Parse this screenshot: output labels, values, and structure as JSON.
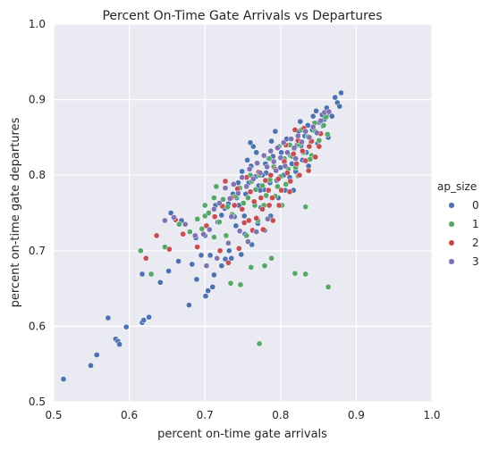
{
  "chart_data": {
    "type": "scatter",
    "title": "Percent On-Time Gate Arrivals vs Departures",
    "xlabel": "percent on-time gate arrivals",
    "ylabel": "percent on-time gate departures",
    "xlim": [
      0.5,
      1.0
    ],
    "ylim": [
      0.5,
      1.0
    ],
    "xticks": [
      "0.5",
      "0.6",
      "0.7",
      "0.8",
      "0.9",
      "1.0"
    ],
    "yticks": [
      "0.5",
      "0.6",
      "0.7",
      "0.8",
      "0.9",
      "1.0"
    ],
    "grid": true,
    "legend": {
      "title": "ap_size",
      "placement": "right"
    },
    "series": [
      {
        "name": "0",
        "color": "#4c72b0",
        "points": [
          [
            0.513,
            0.53
          ],
          [
            0.549,
            0.548
          ],
          [
            0.557,
            0.562
          ],
          [
            0.572,
            0.611
          ],
          [
            0.582,
            0.583
          ],
          [
            0.585,
            0.58
          ],
          [
            0.587,
            0.576
          ],
          [
            0.596,
            0.599
          ],
          [
            0.617,
            0.605
          ],
          [
            0.619,
            0.608
          ],
          [
            0.626,
            0.612
          ],
          [
            0.617,
            0.669
          ],
          [
            0.641,
            0.658
          ],
          [
            0.652,
            0.673
          ],
          [
            0.665,
            0.686
          ],
          [
            0.679,
            0.628
          ],
          [
            0.683,
            0.682
          ],
          [
            0.689,
            0.662
          ],
          [
            0.695,
            0.694
          ],
          [
            0.701,
            0.64
          ],
          [
            0.704,
            0.647
          ],
          [
            0.71,
            0.652
          ],
          [
            0.712,
            0.668
          ],
          [
            0.722,
            0.68
          ],
          [
            0.727,
            0.689
          ],
          [
            0.655,
            0.75
          ],
          [
            0.669,
            0.74
          ],
          [
            0.688,
            0.717
          ],
          [
            0.707,
            0.694
          ],
          [
            0.735,
            0.69
          ],
          [
            0.741,
            0.733
          ],
          [
            0.748,
            0.695
          ],
          [
            0.752,
            0.746
          ],
          [
            0.758,
            0.79
          ],
          [
            0.761,
            0.812
          ],
          [
            0.764,
            0.838
          ],
          [
            0.768,
            0.83
          ],
          [
            0.771,
            0.786
          ],
          [
            0.774,
            0.757
          ],
          [
            0.778,
            0.781
          ],
          [
            0.781,
            0.803
          ],
          [
            0.784,
            0.822
          ],
          [
            0.788,
            0.845
          ],
          [
            0.791,
            0.812
          ],
          [
            0.795,
            0.793
          ],
          [
            0.797,
            0.77
          ],
          [
            0.801,
            0.83
          ],
          [
            0.805,
            0.818
          ],
          [
            0.808,
            0.848
          ],
          [
            0.812,
            0.797
          ],
          [
            0.815,
            0.815
          ],
          [
            0.818,
            0.835
          ],
          [
            0.822,
            0.84
          ],
          [
            0.826,
            0.871
          ],
          [
            0.829,
            0.82
          ],
          [
            0.832,
            0.852
          ],
          [
            0.836,
            0.866
          ],
          [
            0.84,
            0.844
          ],
          [
            0.843,
            0.878
          ],
          [
            0.847,
            0.885
          ],
          [
            0.851,
            0.87
          ],
          [
            0.855,
            0.88
          ],
          [
            0.858,
            0.874
          ],
          [
            0.861,
            0.889
          ],
          [
            0.865,
            0.88
          ],
          [
            0.868,
            0.878
          ],
          [
            0.872,
            0.903
          ],
          [
            0.875,
            0.896
          ],
          [
            0.878,
            0.891
          ],
          [
            0.88,
            0.909
          ],
          [
            0.744,
            0.79
          ],
          [
            0.737,
            0.775
          ],
          [
            0.731,
            0.762
          ],
          [
            0.726,
            0.756
          ],
          [
            0.722,
            0.747
          ],
          [
            0.717,
            0.738
          ],
          [
            0.714,
            0.76
          ],
          [
            0.742,
            0.77
          ],
          [
            0.749,
            0.805
          ],
          [
            0.756,
            0.82
          ],
          [
            0.76,
            0.843
          ],
          [
            0.767,
            0.798
          ],
          [
            0.773,
            0.78
          ],
          [
            0.78,
            0.815
          ],
          [
            0.786,
            0.79
          ],
          [
            0.793,
            0.858
          ],
          [
            0.8,
            0.81
          ],
          [
            0.806,
            0.78
          ],
          [
            0.813,
            0.826
          ],
          [
            0.82,
            0.805
          ],
          [
            0.827,
            0.839
          ],
          [
            0.834,
            0.83
          ],
          [
            0.842,
            0.86
          ],
          [
            0.849,
            0.842
          ],
          [
            0.856,
            0.865
          ],
          [
            0.863,
            0.85
          ],
          [
            0.7,
            0.72
          ],
          [
            0.732,
            0.7
          ],
          [
            0.753,
            0.722
          ],
          [
            0.762,
            0.708
          ],
          [
            0.77,
            0.736
          ],
          [
            0.779,
            0.727
          ],
          [
            0.787,
            0.746
          ],
          [
            0.745,
            0.76
          ],
          [
            0.754,
            0.775
          ],
          [
            0.739,
            0.745
          ],
          [
            0.776,
            0.8
          ],
          [
            0.79,
            0.825
          ],
          [
            0.804,
            0.8
          ],
          [
            0.817,
            0.78
          ],
          [
            0.824,
            0.858
          ],
          [
            0.837,
            0.812
          ]
        ]
      },
      {
        "name": "1",
        "color": "#55a868",
        "points": [
          [
            0.615,
            0.7
          ],
          [
            0.629,
            0.669
          ],
          [
            0.647,
            0.705
          ],
          [
            0.666,
            0.735
          ],
          [
            0.68,
            0.725
          ],
          [
            0.69,
            0.742
          ],
          [
            0.696,
            0.729
          ],
          [
            0.7,
            0.746
          ],
          [
            0.705,
            0.75
          ],
          [
            0.712,
            0.718
          ],
          [
            0.719,
            0.738
          ],
          [
            0.724,
            0.768
          ],
          [
            0.73,
            0.758
          ],
          [
            0.736,
            0.748
          ],
          [
            0.741,
            0.772
          ],
          [
            0.746,
            0.783
          ],
          [
            0.751,
            0.763
          ],
          [
            0.757,
            0.77
          ],
          [
            0.762,
            0.792
          ],
          [
            0.767,
            0.781
          ],
          [
            0.772,
            0.8
          ],
          [
            0.776,
            0.786
          ],
          [
            0.781,
            0.773
          ],
          [
            0.786,
            0.794
          ],
          [
            0.791,
            0.811
          ],
          [
            0.796,
            0.785
          ],
          [
            0.8,
            0.798
          ],
          [
            0.805,
            0.822
          ],
          [
            0.81,
            0.808
          ],
          [
            0.815,
            0.825
          ],
          [
            0.82,
            0.81
          ],
          [
            0.825,
            0.841
          ],
          [
            0.83,
            0.83
          ],
          [
            0.836,
            0.851
          ],
          [
            0.841,
            0.826
          ],
          [
            0.846,
            0.858
          ],
          [
            0.851,
            0.846
          ],
          [
            0.857,
            0.866
          ],
          [
            0.862,
            0.854
          ],
          [
            0.734,
            0.657
          ],
          [
            0.747,
            0.655
          ],
          [
            0.761,
            0.678
          ],
          [
            0.772,
            0.577
          ],
          [
            0.779,
            0.68
          ],
          [
            0.788,
            0.69
          ],
          [
            0.819,
            0.67
          ],
          [
            0.833,
            0.669
          ],
          [
            0.863,
            0.652
          ],
          [
            0.833,
            0.758
          ],
          [
            0.755,
            0.72
          ],
          [
            0.766,
            0.76
          ],
          [
            0.778,
            0.76
          ],
          [
            0.793,
            0.772
          ],
          [
            0.807,
            0.788
          ],
          [
            0.823,
            0.799
          ],
          [
            0.839,
            0.821
          ],
          [
            0.712,
            0.77
          ],
          [
            0.728,
            0.72
          ],
          [
            0.76,
            0.8
          ],
          [
            0.785,
            0.822
          ],
          [
            0.798,
            0.838
          ],
          [
            0.812,
            0.84
          ],
          [
            0.828,
            0.86
          ],
          [
            0.845,
            0.869
          ],
          [
            0.86,
            0.877
          ],
          [
            0.7,
            0.76
          ],
          [
            0.715,
            0.785
          ],
          [
            0.77,
            0.74
          ],
          [
            0.802,
            0.76
          ]
        ]
      },
      {
        "name": "2",
        "color": "#c44e52",
        "points": [
          [
            0.622,
            0.69
          ],
          [
            0.636,
            0.72
          ],
          [
            0.653,
            0.702
          ],
          [
            0.661,
            0.741
          ],
          [
            0.671,
            0.722
          ],
          [
            0.69,
            0.705
          ],
          [
            0.702,
            0.733
          ],
          [
            0.713,
            0.745
          ],
          [
            0.723,
            0.759
          ],
          [
            0.727,
            0.792
          ],
          [
            0.735,
            0.77
          ],
          [
            0.743,
            0.782
          ],
          [
            0.749,
            0.755
          ],
          [
            0.755,
            0.797
          ],
          [
            0.76,
            0.778
          ],
          [
            0.765,
            0.765
          ],
          [
            0.771,
            0.804
          ],
          [
            0.776,
            0.755
          ],
          [
            0.78,
            0.793
          ],
          [
            0.784,
            0.78
          ],
          [
            0.789,
            0.77
          ],
          [
            0.793,
            0.808
          ],
          [
            0.797,
            0.795
          ],
          [
            0.801,
            0.78
          ],
          [
            0.805,
            0.818
          ],
          [
            0.809,
            0.803
          ],
          [
            0.813,
            0.792
          ],
          [
            0.817,
            0.828
          ],
          [
            0.821,
            0.815
          ],
          [
            0.825,
            0.8
          ],
          [
            0.829,
            0.832
          ],
          [
            0.833,
            0.819
          ],
          [
            0.837,
            0.806
          ],
          [
            0.841,
            0.845
          ],
          [
            0.846,
            0.824
          ],
          [
            0.851,
            0.838
          ],
          [
            0.72,
            0.7
          ],
          [
            0.731,
            0.684
          ],
          [
            0.745,
            0.703
          ],
          [
            0.752,
            0.737
          ],
          [
            0.763,
            0.727
          ],
          [
            0.768,
            0.743
          ],
          [
            0.777,
            0.728
          ],
          [
            0.785,
            0.76
          ],
          [
            0.79,
            0.74
          ],
          [
            0.758,
            0.74
          ],
          [
            0.774,
            0.77
          ],
          [
            0.787,
            0.8
          ],
          [
            0.798,
            0.76
          ],
          [
            0.812,
            0.778
          ],
          [
            0.823,
            0.846
          ],
          [
            0.838,
            0.838
          ],
          [
            0.853,
            0.855
          ],
          [
            0.739,
            0.76
          ],
          [
            0.807,
            0.84
          ],
          [
            0.819,
            0.86
          ],
          [
            0.831,
            0.862
          ]
        ]
      },
      {
        "name": "3",
        "color": "#8172b2",
        "points": [
          [
            0.647,
            0.74
          ],
          [
            0.659,
            0.744
          ],
          [
            0.674,
            0.735
          ],
          [
            0.687,
            0.72
          ],
          [
            0.698,
            0.722
          ],
          [
            0.706,
            0.728
          ],
          [
            0.712,
            0.755
          ],
          [
            0.719,
            0.763
          ],
          [
            0.727,
            0.783
          ],
          [
            0.733,
            0.769
          ],
          [
            0.738,
            0.788
          ],
          [
            0.744,
            0.776
          ],
          [
            0.749,
            0.797
          ],
          [
            0.755,
            0.785
          ],
          [
            0.759,
            0.808
          ],
          [
            0.764,
            0.795
          ],
          [
            0.769,
            0.816
          ],
          [
            0.773,
            0.803
          ],
          [
            0.778,
            0.826
          ],
          [
            0.782,
            0.811
          ],
          [
            0.787,
            0.832
          ],
          [
            0.791,
            0.818
          ],
          [
            0.796,
            0.836
          ],
          [
            0.8,
            0.823
          ],
          [
            0.804,
            0.843
          ],
          [
            0.809,
            0.83
          ],
          [
            0.814,
            0.848
          ],
          [
            0.818,
            0.836
          ],
          [
            0.823,
            0.852
          ],
          [
            0.828,
            0.844
          ],
          [
            0.833,
            0.858
          ],
          [
            0.838,
            0.85
          ],
          [
            0.843,
            0.864
          ],
          [
            0.848,
            0.856
          ],
          [
            0.853,
            0.872
          ],
          [
            0.858,
            0.883
          ],
          [
            0.864,
            0.884
          ],
          [
            0.702,
            0.68
          ],
          [
            0.716,
            0.69
          ],
          [
            0.731,
            0.71
          ],
          [
            0.746,
            0.726
          ],
          [
            0.757,
            0.712
          ],
          [
            0.768,
            0.725
          ],
          [
            0.783,
            0.742
          ],
          [
            0.735,
            0.745
          ],
          [
            0.794,
            0.806
          ],
          [
            0.806,
            0.812
          ],
          [
            0.82,
            0.822
          ]
        ]
      }
    ]
  }
}
